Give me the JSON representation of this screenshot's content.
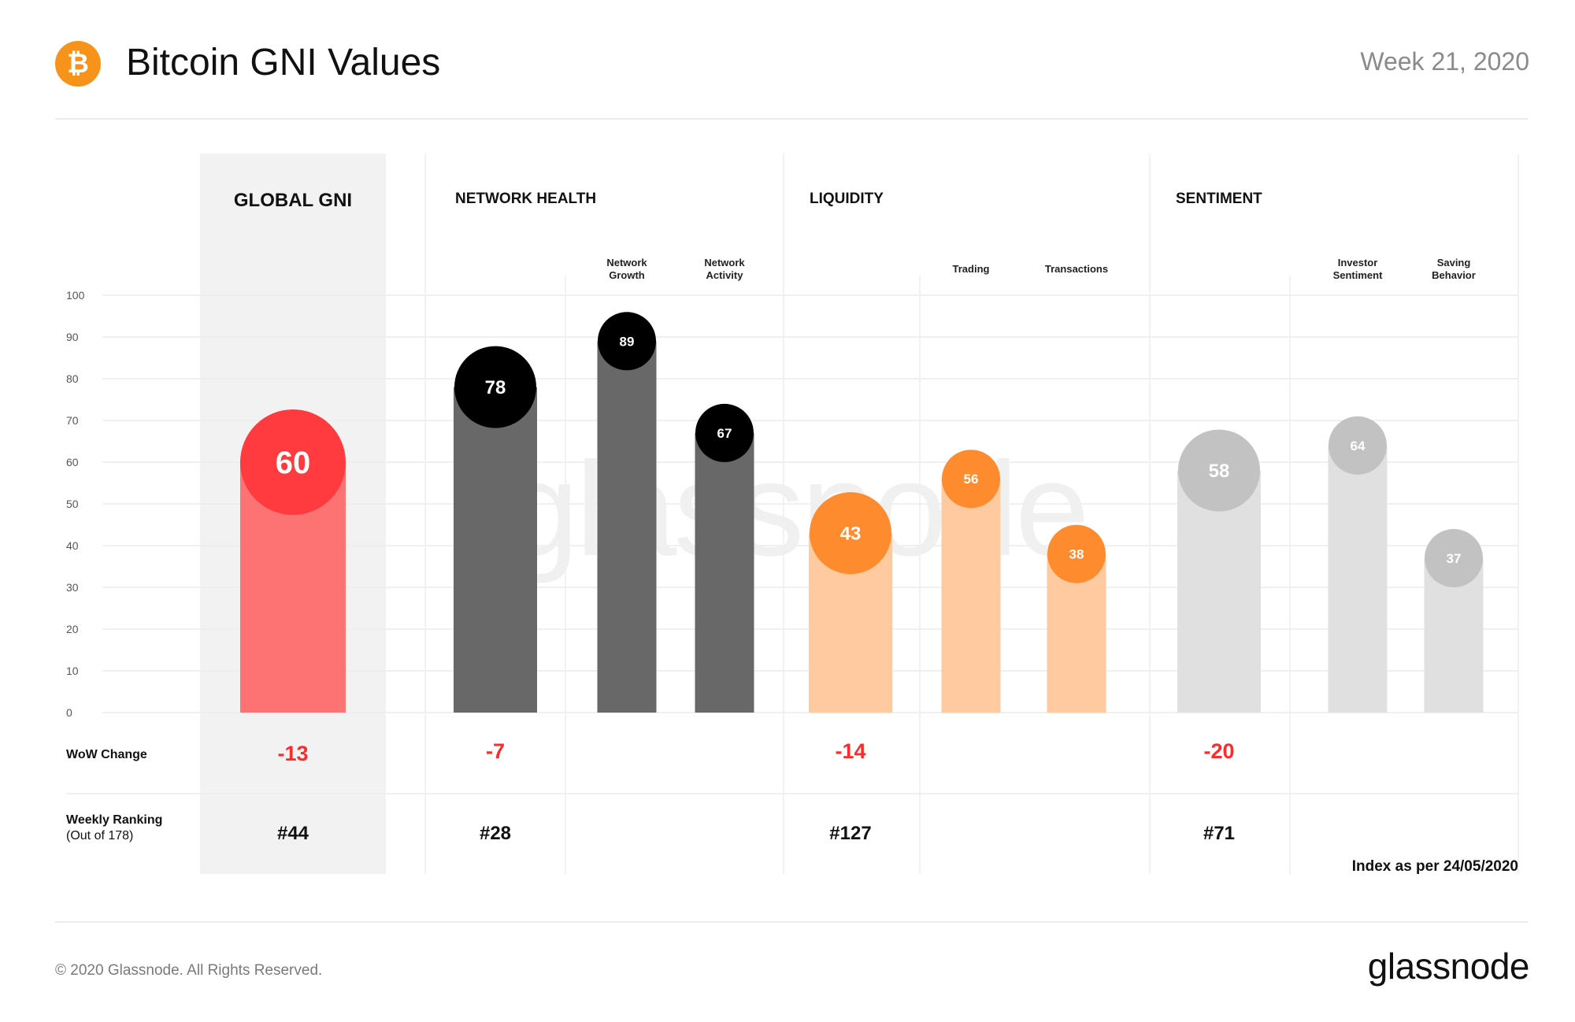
{
  "header": {
    "logo_symbol": "₿",
    "title": "Bitcoin GNI Values",
    "week": "Week 21, 2020"
  },
  "footer": {
    "copyright": "© 2020 Glassnode. All Rights Reserved.",
    "brand": "glassnode"
  },
  "colors": {
    "global_bubble": "#ff3b3f",
    "global_bar": "#fd7373",
    "network_bubble": "#000000",
    "network_bar": "#686868",
    "liquidity_bubble": "#ff8b2f",
    "liquidity_bar": "#ffcaa0",
    "sentiment_bubble": "#c2c2c2",
    "sentiment_bar": "#e0e0e0",
    "wow_negative": "#ff2a2a",
    "gnode_watermark": "#f0f0f0",
    "global_panel": "#f2f2f2"
  },
  "chart_data": {
    "type": "bar",
    "ylim": [
      0,
      100
    ],
    "yticks": [
      0,
      10,
      20,
      30,
      40,
      50,
      60,
      70,
      80,
      90,
      100
    ],
    "watermark": "glassnode",
    "row_labels": {
      "wow": "WoW  Change",
      "ranking": "Weekly Ranking",
      "ranking_sub": "(Out of 178)"
    },
    "note": "Index as per 24/05/2020",
    "groups": [
      {
        "name": "GLOBAL GNI",
        "wow": "-13",
        "ranking": "#44",
        "bars": [
          {
            "label": "",
            "value": 60,
            "kind": "main"
          }
        ]
      },
      {
        "name": "NETWORK HEALTH",
        "wow": "-7",
        "ranking": "#28",
        "bars": [
          {
            "label": "",
            "value": 78,
            "kind": "main"
          },
          {
            "label": "Network\nGrowth",
            "value": 89,
            "kind": "sub"
          },
          {
            "label": "Network\nActivity",
            "value": 67,
            "kind": "sub"
          }
        ]
      },
      {
        "name": "LIQUIDITY",
        "wow": "-14",
        "ranking": "#127",
        "bars": [
          {
            "label": "",
            "value": 43,
            "kind": "main"
          },
          {
            "label": "Trading",
            "value": 56,
            "kind": "sub"
          },
          {
            "label": "Transactions",
            "value": 38,
            "kind": "sub"
          }
        ]
      },
      {
        "name": "SENTIMENT",
        "wow": "-20",
        "ranking": "#71",
        "bars": [
          {
            "label": "",
            "value": 58,
            "kind": "main"
          },
          {
            "label": "Investor\nSentiment",
            "value": 64,
            "kind": "sub"
          },
          {
            "label": "Saving\nBehavior",
            "value": 37,
            "kind": "sub"
          }
        ]
      }
    ]
  }
}
